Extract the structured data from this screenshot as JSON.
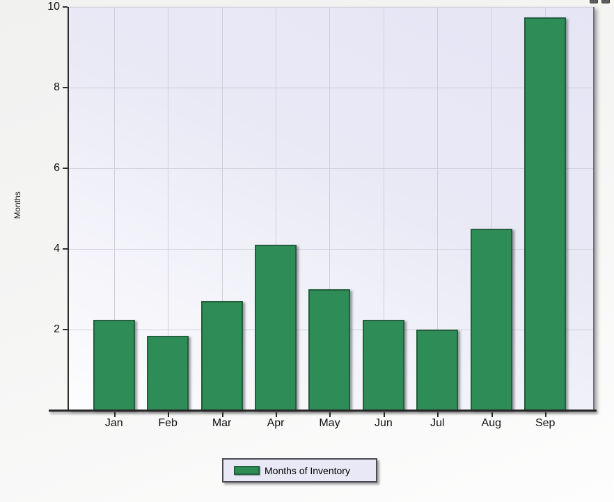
{
  "chart_data": {
    "type": "bar",
    "title": "",
    "categories": [
      "Jan",
      "Feb",
      "Mar",
      "Apr",
      "May",
      "Jun",
      "Jul",
      "Aug",
      "Sep"
    ],
    "values": [
      2.25,
      1.85,
      2.7,
      4.1,
      3.0,
      2.25,
      2.0,
      4.5,
      9.75
    ],
    "series_name": "Months of Inventory",
    "xlabel": "",
    "ylabel": "Months",
    "ylim": [
      0,
      10
    ],
    "yticks": [
      2,
      4,
      6,
      8,
      10
    ],
    "grid": true,
    "legend_position": "bottom-center",
    "colors": {
      "bar_fill": "#2e8d57",
      "bar_border": "#235e3d",
      "plot_bg_top": "#e5e5f5",
      "plot_bg_bottom": "#fdfdfe",
      "gridline": "#cfcfdc",
      "axis": "#262626"
    }
  },
  "legend": {
    "label": "Months of Inventory"
  },
  "window_controls": {
    "note": "two partially visible toolbar buttons cut off at top-right edge"
  }
}
